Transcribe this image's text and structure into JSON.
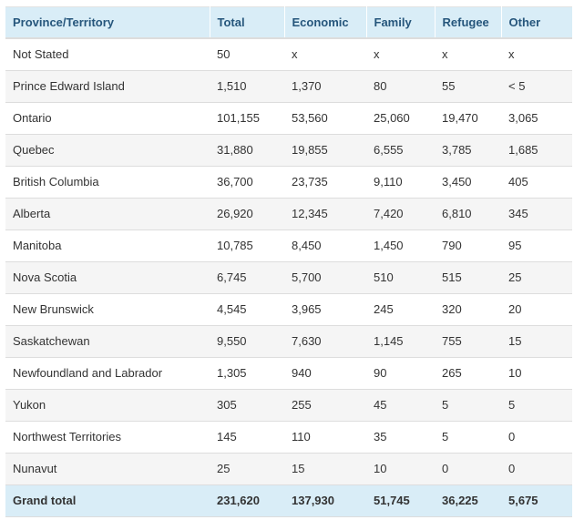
{
  "colors": {
    "header_bg": "#d9edf7",
    "header_text": "#26567c",
    "footer_bg": "#d9edf7",
    "stripe_bg": "#f5f5f5",
    "row_bg": "#ffffff",
    "border": "#dddddd",
    "body_text": "#333333"
  },
  "chart_data": {
    "type": "table",
    "columns": [
      "Province/Territory",
      "Total",
      "Economic",
      "Family",
      "Refugee",
      "Other"
    ],
    "rows": [
      {
        "label": "Not Stated",
        "values": [
          "50",
          "x",
          "x",
          "x",
          "x"
        ]
      },
      {
        "label": "Prince Edward Island",
        "values": [
          "1,510",
          "1,370",
          "80",
          "55",
          "< 5"
        ]
      },
      {
        "label": "Ontario",
        "values": [
          "101,155",
          "53,560",
          "25,060",
          "19,470",
          "3,065"
        ]
      },
      {
        "label": "Quebec",
        "values": [
          "31,880",
          "19,855",
          "6,555",
          "3,785",
          "1,685"
        ]
      },
      {
        "label": "British Columbia",
        "values": [
          "36,700",
          "23,735",
          "9,110",
          "3,450",
          "405"
        ]
      },
      {
        "label": "Alberta",
        "values": [
          "26,920",
          "12,345",
          "7,420",
          "6,810",
          "345"
        ]
      },
      {
        "label": "Manitoba",
        "values": [
          "10,785",
          "8,450",
          "1,450",
          "790",
          "95"
        ]
      },
      {
        "label": "Nova Scotia",
        "values": [
          "6,745",
          "5,700",
          "510",
          "515",
          "25"
        ]
      },
      {
        "label": "New Brunswick",
        "values": [
          "4,545",
          "3,965",
          "245",
          "320",
          "20"
        ]
      },
      {
        "label": "Saskatchewan",
        "values": [
          "9,550",
          "7,630",
          "1,145",
          "755",
          "15"
        ]
      },
      {
        "label": "Newfoundland and Labrador",
        "values": [
          "1,305",
          "940",
          "90",
          "265",
          "10"
        ]
      },
      {
        "label": "Yukon",
        "values": [
          "305",
          "255",
          "45",
          "5",
          "5"
        ]
      },
      {
        "label": "Northwest Territories",
        "values": [
          "145",
          "110",
          "35",
          "5",
          "0"
        ]
      },
      {
        "label": "Nunavut",
        "values": [
          "25",
          "15",
          "10",
          "0",
          "0"
        ]
      }
    ],
    "footer": {
      "label": "Grand total",
      "values": [
        "231,620",
        "137,930",
        "51,745",
        "36,225",
        "5,675"
      ]
    },
    "layout": {
      "striped": true,
      "number_alignment": "left",
      "suppressed_value_marker": "x",
      "small_value_marker": "< 5"
    }
  }
}
